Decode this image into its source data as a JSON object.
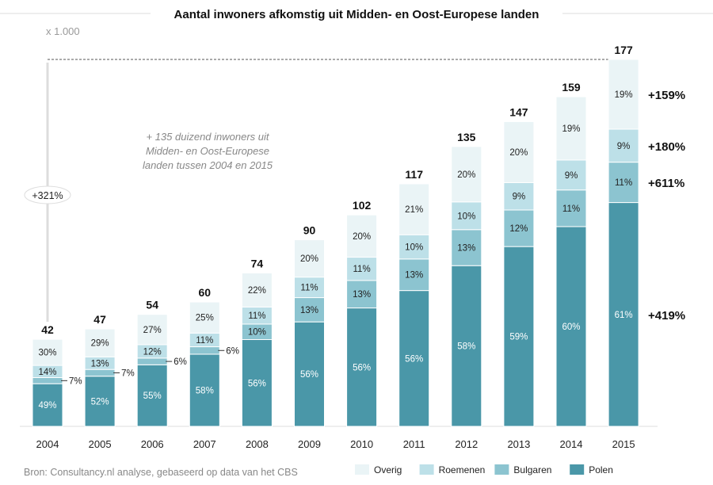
{
  "chart_data": {
    "type": "bar",
    "stacked": true,
    "title": "Aantal inwoners afkomstig uit Midden- en Oost-Europese landen",
    "unit_label": "x 1.000",
    "categories": [
      "2004",
      "2005",
      "2006",
      "2007",
      "2008",
      "2009",
      "2010",
      "2011",
      "2012",
      "2013",
      "2014",
      "2015"
    ],
    "totals": [
      42,
      47,
      54,
      60,
      74,
      90,
      102,
      117,
      135,
      147,
      159,
      177
    ],
    "series": [
      {
        "name": "Polen",
        "color": "#4a97a8",
        "shares": [
          49,
          52,
          55,
          58,
          56,
          56,
          56,
          56,
          58,
          59,
          60,
          61
        ],
        "growth": "+419%"
      },
      {
        "name": "Bulgaren",
        "color": "#8cc4d0",
        "shares": [
          7,
          7,
          6,
          6,
          10,
          13,
          13,
          13,
          13,
          12,
          11,
          11
        ],
        "growth": "+611%"
      },
      {
        "name": "Roemenen",
        "color": "#bde0e8",
        "shares": [
          14,
          13,
          12,
          11,
          11,
          11,
          11,
          10,
          10,
          9,
          9,
          9
        ],
        "growth": "+180%"
      },
      {
        "name": "Overig",
        "color": "#eaf4f6",
        "shares": [
          30,
          29,
          27,
          25,
          22,
          20,
          20,
          21,
          20,
          20,
          19,
          19
        ],
        "growth": "+159%"
      }
    ],
    "total_growth": "+321%",
    "annotation": [
      "+ 135 duizend inwoners uit",
      "Midden- en Oost-Europese",
      "landen tussen 2004 en 2015"
    ],
    "legend_order": [
      "Overig",
      "Roemenen",
      "Bulgaren",
      "Polen"
    ],
    "legend_position": "bottom-right",
    "source": "Bron: Consultancy.nl analyse, gebaseerd op data van het CBS",
    "ylim": [
      0,
      177
    ],
    "grid": false
  }
}
